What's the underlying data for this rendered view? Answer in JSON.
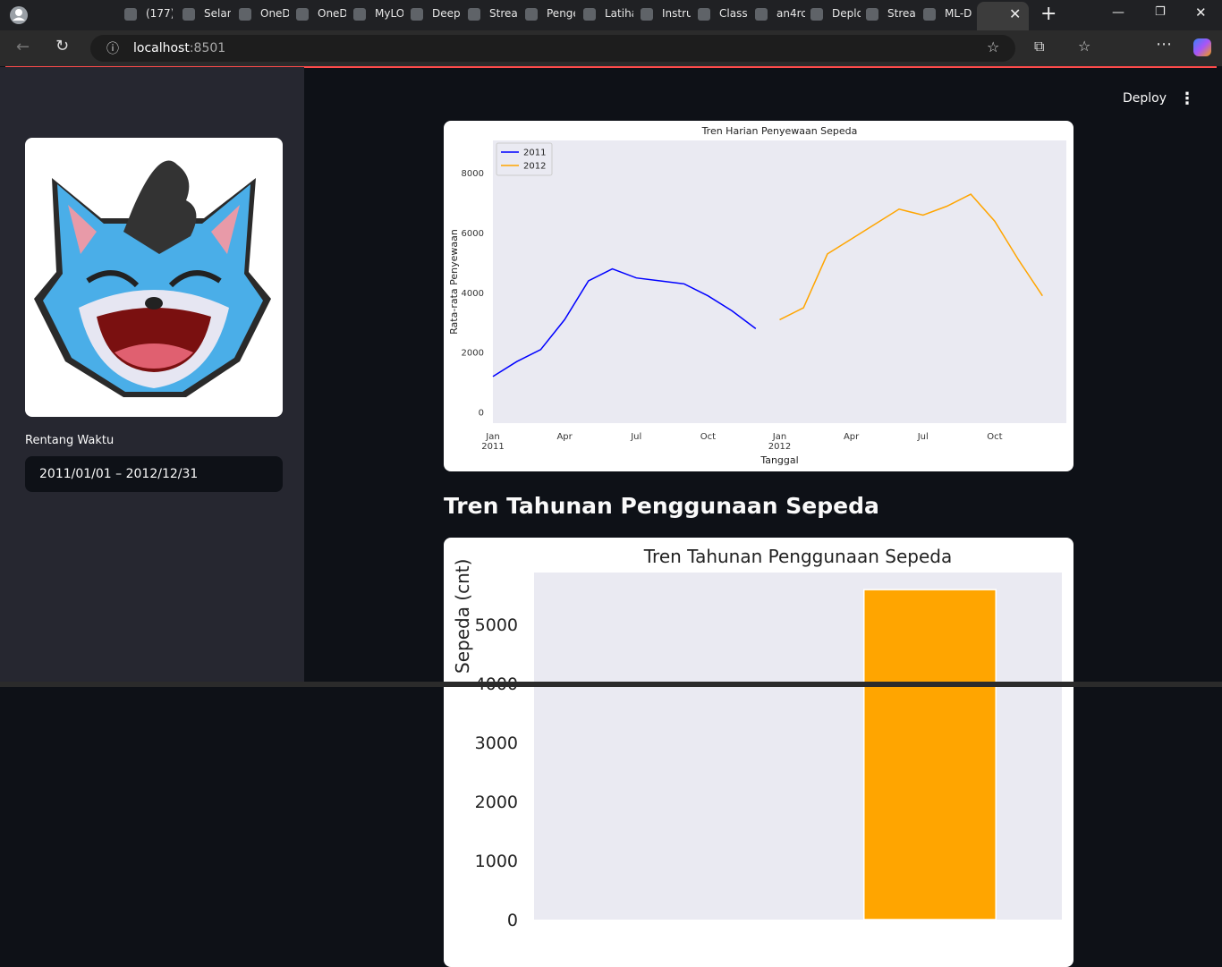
{
  "browser": {
    "tabs": [
      "(177)",
      "Selam",
      "OneD",
      "OneD",
      "MyLO",
      "Deep",
      "Strean",
      "Penge",
      "Latiha",
      "Instru",
      "Class",
      "an4rc",
      "Deplo",
      "Strea",
      "ML-D"
    ],
    "host": "localhost",
    "port": ":8501"
  },
  "sidebar": {
    "date_label": "Rentang Waktu",
    "date_range": "2011/01/01 – 2012/12/31"
  },
  "header": {
    "deploy": "Deploy"
  },
  "section_heading": "Tren Tahunan Penggunaan Sepeda",
  "chart_data": [
    {
      "type": "line",
      "title": "Tren Harian Penyewaan Sepeda",
      "x_label": "Tanggal",
      "y_label": "Rata-rata Penyewaan",
      "x": [
        "2011-01",
        "2011-02",
        "2011-03",
        "2011-04",
        "2011-05",
        "2011-06",
        "2011-07",
        "2011-08",
        "2011-09",
        "2011-10",
        "2011-11",
        "2011-12",
        "2012-01",
        "2012-02",
        "2012-03",
        "2012-04",
        "2012-05",
        "2012-06",
        "2012-07",
        "2012-08",
        "2012-09",
        "2012-10",
        "2012-11",
        "2012-12"
      ],
      "series": [
        {
          "name": "2011",
          "color": "#0000ff",
          "values": [
            1200,
            1700,
            2100,
            3100,
            4400,
            4800,
            4500,
            4400,
            4300,
            3900,
            3400,
            2800,
            null,
            null,
            null,
            null,
            null,
            null,
            null,
            null,
            null,
            null,
            null,
            null
          ]
        },
        {
          "name": "2012",
          "color": "#ffa500",
          "values": [
            null,
            null,
            null,
            null,
            null,
            null,
            null,
            null,
            null,
            null,
            null,
            null,
            3100,
            3500,
            5300,
            5800,
            6300,
            6800,
            6600,
            6900,
            7300,
            6400,
            5100,
            3900
          ]
        }
      ],
      "xlim": [
        "2011-01",
        "2013-01"
      ],
      "xticks": [
        {
          "value": "2011-01",
          "label": "Jan\n2011"
        },
        {
          "value": "2011-04",
          "label": "Apr"
        },
        {
          "value": "2011-07",
          "label": "Jul"
        },
        {
          "value": "2011-10",
          "label": "Oct"
        },
        {
          "value": "2012-01",
          "label": "Jan\n2012"
        },
        {
          "value": "2012-04",
          "label": "Apr"
        },
        {
          "value": "2012-07",
          "label": "Jul"
        },
        {
          "value": "2012-10",
          "label": "Oct"
        }
      ],
      "ylim": [
        -360,
        9100
      ],
      "yticks": [
        0,
        2000,
        4000,
        6000,
        8000
      ],
      "legend": "upper left",
      "grid": false
    },
    {
      "type": "bar",
      "title": "Tren Tahunan Penggunaan Sepeda",
      "y_label": "Sepeda (cnt)",
      "categories": [
        null,
        null
      ],
      "values": [
        null,
        5590
      ],
      "color": "#ffa500",
      "ylim": [
        0,
        5880
      ],
      "yticks": [
        0,
        1000,
        2000,
        3000,
        4000,
        5000
      ],
      "grid": false
    }
  ]
}
